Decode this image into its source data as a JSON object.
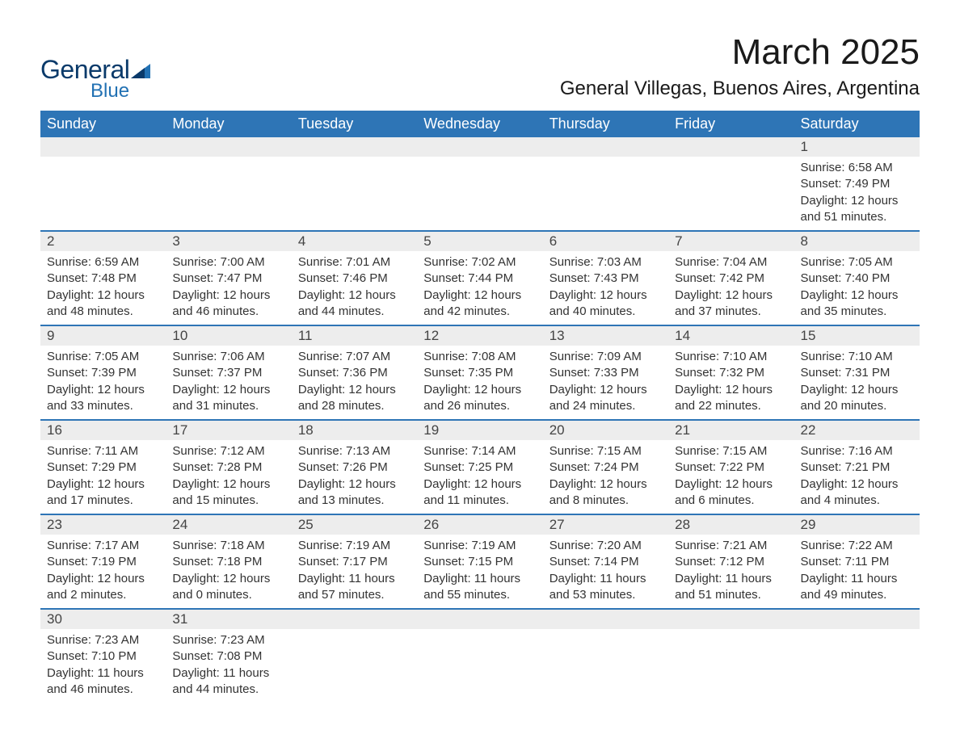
{
  "logo": {
    "text_general": "General",
    "text_blue": "Blue",
    "general_color": "#0a3a6a",
    "blue_color": "#2271b3",
    "sail_color": "#2271b3"
  },
  "title": "March 2025",
  "location": "General Villegas, Buenos Aires, Argentina",
  "colors": {
    "header_bg": "#2e75b6",
    "header_fg": "#ffffff",
    "row_band": "#ededed",
    "border": "#2e75b6",
    "text": "#333333",
    "background": "#ffffff"
  },
  "day_headers": [
    "Sunday",
    "Monday",
    "Tuesday",
    "Wednesday",
    "Thursday",
    "Friday",
    "Saturday"
  ],
  "label_sunrise": "Sunrise: ",
  "label_sunset": "Sunset: ",
  "label_daylight_prefix": "Daylight: ",
  "weeks": [
    [
      null,
      null,
      null,
      null,
      null,
      null,
      {
        "n": "1",
        "sunrise": "6:58 AM",
        "sunset": "7:49 PM",
        "daylight": "12 hours and 51 minutes."
      }
    ],
    [
      {
        "n": "2",
        "sunrise": "6:59 AM",
        "sunset": "7:48 PM",
        "daylight": "12 hours and 48 minutes."
      },
      {
        "n": "3",
        "sunrise": "7:00 AM",
        "sunset": "7:47 PM",
        "daylight": "12 hours and 46 minutes."
      },
      {
        "n": "4",
        "sunrise": "7:01 AM",
        "sunset": "7:46 PM",
        "daylight": "12 hours and 44 minutes."
      },
      {
        "n": "5",
        "sunrise": "7:02 AM",
        "sunset": "7:44 PM",
        "daylight": "12 hours and 42 minutes."
      },
      {
        "n": "6",
        "sunrise": "7:03 AM",
        "sunset": "7:43 PM",
        "daylight": "12 hours and 40 minutes."
      },
      {
        "n": "7",
        "sunrise": "7:04 AM",
        "sunset": "7:42 PM",
        "daylight": "12 hours and 37 minutes."
      },
      {
        "n": "8",
        "sunrise": "7:05 AM",
        "sunset": "7:40 PM",
        "daylight": "12 hours and 35 minutes."
      }
    ],
    [
      {
        "n": "9",
        "sunrise": "7:05 AM",
        "sunset": "7:39 PM",
        "daylight": "12 hours and 33 minutes."
      },
      {
        "n": "10",
        "sunrise": "7:06 AM",
        "sunset": "7:37 PM",
        "daylight": "12 hours and 31 minutes."
      },
      {
        "n": "11",
        "sunrise": "7:07 AM",
        "sunset": "7:36 PM",
        "daylight": "12 hours and 28 minutes."
      },
      {
        "n": "12",
        "sunrise": "7:08 AM",
        "sunset": "7:35 PM",
        "daylight": "12 hours and 26 minutes."
      },
      {
        "n": "13",
        "sunrise": "7:09 AM",
        "sunset": "7:33 PM",
        "daylight": "12 hours and 24 minutes."
      },
      {
        "n": "14",
        "sunrise": "7:10 AM",
        "sunset": "7:32 PM",
        "daylight": "12 hours and 22 minutes."
      },
      {
        "n": "15",
        "sunrise": "7:10 AM",
        "sunset": "7:31 PM",
        "daylight": "12 hours and 20 minutes."
      }
    ],
    [
      {
        "n": "16",
        "sunrise": "7:11 AM",
        "sunset": "7:29 PM",
        "daylight": "12 hours and 17 minutes."
      },
      {
        "n": "17",
        "sunrise": "7:12 AM",
        "sunset": "7:28 PM",
        "daylight": "12 hours and 15 minutes."
      },
      {
        "n": "18",
        "sunrise": "7:13 AM",
        "sunset": "7:26 PM",
        "daylight": "12 hours and 13 minutes."
      },
      {
        "n": "19",
        "sunrise": "7:14 AM",
        "sunset": "7:25 PM",
        "daylight": "12 hours and 11 minutes."
      },
      {
        "n": "20",
        "sunrise": "7:15 AM",
        "sunset": "7:24 PM",
        "daylight": "12 hours and 8 minutes."
      },
      {
        "n": "21",
        "sunrise": "7:15 AM",
        "sunset": "7:22 PM",
        "daylight": "12 hours and 6 minutes."
      },
      {
        "n": "22",
        "sunrise": "7:16 AM",
        "sunset": "7:21 PM",
        "daylight": "12 hours and 4 minutes."
      }
    ],
    [
      {
        "n": "23",
        "sunrise": "7:17 AM",
        "sunset": "7:19 PM",
        "daylight": "12 hours and 2 minutes."
      },
      {
        "n": "24",
        "sunrise": "7:18 AM",
        "sunset": "7:18 PM",
        "daylight": "12 hours and 0 minutes."
      },
      {
        "n": "25",
        "sunrise": "7:19 AM",
        "sunset": "7:17 PM",
        "daylight": "11 hours and 57 minutes."
      },
      {
        "n": "26",
        "sunrise": "7:19 AM",
        "sunset": "7:15 PM",
        "daylight": "11 hours and 55 minutes."
      },
      {
        "n": "27",
        "sunrise": "7:20 AM",
        "sunset": "7:14 PM",
        "daylight": "11 hours and 53 minutes."
      },
      {
        "n": "28",
        "sunrise": "7:21 AM",
        "sunset": "7:12 PM",
        "daylight": "11 hours and 51 minutes."
      },
      {
        "n": "29",
        "sunrise": "7:22 AM",
        "sunset": "7:11 PM",
        "daylight": "11 hours and 49 minutes."
      }
    ],
    [
      {
        "n": "30",
        "sunrise": "7:23 AM",
        "sunset": "7:10 PM",
        "daylight": "11 hours and 46 minutes."
      },
      {
        "n": "31",
        "sunrise": "7:23 AM",
        "sunset": "7:08 PM",
        "daylight": "11 hours and 44 minutes."
      },
      null,
      null,
      null,
      null,
      null
    ]
  ]
}
